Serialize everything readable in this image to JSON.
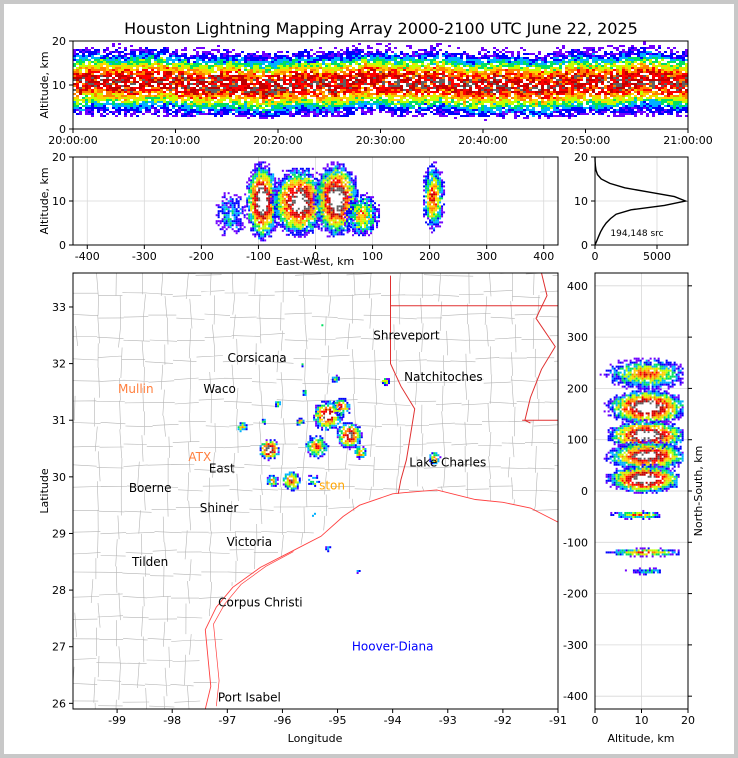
{
  "title": "Houston Lightning Mapping Array 2000-2100 UTC June 22, 2025",
  "colors": {
    "grid": "#d8d8d8",
    "county": "#b4b4b4",
    "coast": "#ff4040",
    "state": "#e03030",
    "density": [
      "#7000ff",
      "#0000ff",
      "#00b0ff",
      "#00e060",
      "#c0ff00",
      "#ffd000",
      "#ff8000",
      "#ff0000",
      "#c00000",
      "#606060",
      "#ffffff"
    ]
  },
  "chart_data": [
    {
      "id": "time_height",
      "type": "heatmap",
      "ylabel": "Altitude, km",
      "xlim": [
        "20:00:00",
        "21:00:00"
      ],
      "ylim": [
        0,
        20
      ],
      "x_ticks": [
        "20:00:00",
        "20:10:00",
        "20:20:00",
        "20:30:00",
        "20:40:00",
        "20:50:00",
        "21:00:00"
      ],
      "y_ticks": [
        0,
        10,
        20
      ],
      "core_altitude_km": [
        7,
        14
      ]
    },
    {
      "id": "ew_height",
      "type": "heatmap",
      "xlabel": "East-West, km",
      "ylabel": "Altitude, km",
      "xlim": [
        -425,
        425
      ],
      "ylim": [
        0,
        20
      ],
      "x_ticks": [
        -400,
        -300,
        -200,
        -100,
        0,
        100,
        200,
        300,
        400
      ],
      "y_ticks": [
        0,
        10,
        20
      ],
      "clusters": [
        {
          "x": -150,
          "w": 25,
          "alt": [
            2,
            12
          ],
          "peak": 0.25
        },
        {
          "x": -95,
          "w": 30,
          "alt": [
            1,
            19
          ],
          "peak": 0.95
        },
        {
          "x": -30,
          "w": 50,
          "alt": [
            2,
            18
          ],
          "peak": 0.9
        },
        {
          "x": 35,
          "w": 40,
          "alt": [
            2,
            19
          ],
          "peak": 0.95
        },
        {
          "x": 80,
          "w": 30,
          "alt": [
            2,
            12
          ],
          "peak": 0.5
        },
        {
          "x": 205,
          "w": 20,
          "alt": [
            3,
            19
          ],
          "peak": 0.6
        }
      ]
    },
    {
      "id": "altitude_histogram",
      "type": "line",
      "annotation": "194,148 src",
      "xlim": [
        0,
        7500
      ],
      "ylim": [
        0,
        20
      ],
      "x_ticks": [
        0,
        5000
      ],
      "y_ticks": [
        0,
        10,
        20
      ],
      "points": [
        [
          0,
          0
        ],
        [
          150,
          1
        ],
        [
          300,
          2
        ],
        [
          450,
          3
        ],
        [
          650,
          4
        ],
        [
          900,
          5
        ],
        [
          1250,
          6
        ],
        [
          1700,
          7
        ],
        [
          2900,
          8
        ],
        [
          5600,
          9
        ],
        [
          7300,
          10
        ],
        [
          6400,
          11
        ],
        [
          4400,
          12
        ],
        [
          2400,
          13
        ],
        [
          1200,
          14
        ],
        [
          500,
          15
        ],
        [
          200,
          16
        ],
        [
          80,
          17
        ],
        [
          30,
          18
        ],
        [
          10,
          19
        ],
        [
          0,
          20
        ]
      ]
    },
    {
      "id": "plan_view",
      "type": "scatter",
      "xlabel": "Longitude",
      "ylabel": "Latitude",
      "xlim": [
        -99.8,
        -91
      ],
      "ylim": [
        25.9,
        33.6
      ],
      "x_ticks": [
        -99,
        -98,
        -97,
        -96,
        -95,
        -94,
        -93,
        -92,
        -91
      ],
      "y_ticks": [
        26,
        27,
        28,
        29,
        30,
        31,
        32,
        33
      ],
      "places": [
        {
          "name": "Shreveport",
          "lon": -93.75,
          "lat": 32.5,
          "color": "#000000"
        },
        {
          "name": "Corsicana",
          "lon": -96.46,
          "lat": 32.1,
          "color": "#000000"
        },
        {
          "name": "Mullin",
          "lon": -98.66,
          "lat": 31.55,
          "color": "#ff8040"
        },
        {
          "name": "Waco",
          "lon": -97.14,
          "lat": 31.55,
          "color": "#000000"
        },
        {
          "name": "Natchitoches",
          "lon": -93.08,
          "lat": 31.76,
          "color": "#000000"
        },
        {
          "name": "ATX",
          "lon": -97.5,
          "lat": 30.35,
          "color": "#ff8040"
        },
        {
          "name": "East",
          "lon": -97.1,
          "lat": 30.15,
          "color": "#000000"
        },
        {
          "name": "Lake Charles",
          "lon": -93.0,
          "lat": 30.25,
          "color": "#000000"
        },
        {
          "name": "Boerne",
          "lon": -98.4,
          "lat": 29.8,
          "color": "#000000"
        },
        {
          "name": "ston",
          "lon": -95.1,
          "lat": 29.85,
          "color": "#ffa500"
        },
        {
          "name": "Shiner",
          "lon": -97.15,
          "lat": 29.45,
          "color": "#000000"
        },
        {
          "name": "Victoria",
          "lon": -96.6,
          "lat": 28.85,
          "color": "#000000"
        },
        {
          "name": "Tilden",
          "lon": -98.4,
          "lat": 28.5,
          "color": "#000000"
        },
        {
          "name": "Corpus Christi",
          "lon": -96.4,
          "lat": 27.78,
          "color": "#000000"
        },
        {
          "name": "Hoover-Diana",
          "lon": -94.0,
          "lat": 27.0,
          "color": "#0000ff"
        },
        {
          "name": "Port Isabel",
          "lon": -96.6,
          "lat": 26.1,
          "color": "#000000"
        }
      ],
      "clusters": [
        {
          "lon": -95.2,
          "lat": 31.1,
          "r": 0.28,
          "peak": 0.9
        },
        {
          "lon": -94.8,
          "lat": 30.75,
          "r": 0.25,
          "peak": 0.85
        },
        {
          "lon": -94.95,
          "lat": 31.25,
          "r": 0.18,
          "peak": 0.7
        },
        {
          "lon": -95.4,
          "lat": 30.55,
          "r": 0.22,
          "peak": 0.6
        },
        {
          "lon": -96.25,
          "lat": 30.5,
          "r": 0.2,
          "peak": 0.95
        },
        {
          "lon": -96.75,
          "lat": 30.9,
          "r": 0.1,
          "peak": 0.5
        },
        {
          "lon": -95.85,
          "lat": 29.95,
          "r": 0.18,
          "peak": 0.7
        },
        {
          "lon": -96.2,
          "lat": 29.95,
          "r": 0.12,
          "peak": 0.55
        },
        {
          "lon": -95.45,
          "lat": 29.95,
          "r": 0.12,
          "peak": 0.5
        },
        {
          "lon": -94.6,
          "lat": 30.45,
          "r": 0.13,
          "peak": 0.6
        },
        {
          "lon": -93.25,
          "lat": 30.35,
          "r": 0.12,
          "peak": 0.6
        },
        {
          "lon": -94.15,
          "lat": 31.7,
          "r": 0.08,
          "peak": 0.5
        },
        {
          "lon": -95.7,
          "lat": 31.0,
          "r": 0.08,
          "peak": 0.5
        },
        {
          "lon": -96.1,
          "lat": 31.3,
          "r": 0.07,
          "peak": 0.45
        },
        {
          "lon": -95.6,
          "lat": 31.5,
          "r": 0.07,
          "peak": 0.35
        },
        {
          "lon": -95.05,
          "lat": 31.75,
          "r": 0.09,
          "peak": 0.4
        },
        {
          "lon": -95.45,
          "lat": 29.35,
          "r": 0.05,
          "peak": 0.45
        },
        {
          "lon": -95.2,
          "lat": 28.75,
          "r": 0.06,
          "peak": 0.3
        },
        {
          "lon": -94.65,
          "lat": 28.35,
          "r": 0.04,
          "peak": 0.3
        },
        {
          "lon": -95.65,
          "lat": 32.0,
          "r": 0.04,
          "peak": 0.3
        },
        {
          "lon": -95.3,
          "lat": 32.7,
          "r": 0.03,
          "peak": 0.25
        },
        {
          "lon": -96.35,
          "lat": 31.0,
          "r": 0.06,
          "peak": 0.4
        }
      ],
      "state_lines": [
        [
          [
            -94.04,
            33.55
          ],
          [
            -94.04,
            33.02
          ],
          [
            -91.16,
            33.02
          ],
          [
            -91.0,
            33.02
          ]
        ],
        [
          [
            -94.04,
            33.55
          ],
          [
            -94.04,
            32.0
          ],
          [
            -93.85,
            31.6
          ],
          [
            -93.6,
            31.2
          ],
          [
            -93.7,
            30.6
          ],
          [
            -93.75,
            30.3
          ],
          [
            -93.85,
            29.95
          ],
          [
            -93.9,
            29.7
          ]
        ],
        [
          [
            -91.65,
            31.0
          ],
          [
            -91.0,
            31.0
          ]
        ],
        [
          [
            -91.3,
            33.6
          ],
          [
            -91.2,
            33.2
          ],
          [
            -91.4,
            32.8
          ],
          [
            -91.05,
            32.3
          ],
          [
            -91.3,
            31.9
          ],
          [
            -91.5,
            31.4
          ],
          [
            -91.6,
            31.0
          ],
          [
            -91.5,
            30.95
          ]
        ]
      ],
      "coast": [
        [
          -97.4,
          25.9
        ],
        [
          -97.3,
          26.3
        ],
        [
          -97.35,
          26.8
        ],
        [
          -97.4,
          27.3
        ],
        [
          -97.2,
          27.7
        ],
        [
          -96.9,
          28.05
        ],
        [
          -96.4,
          28.4
        ],
        [
          -95.9,
          28.65
        ],
        [
          -95.3,
          28.95
        ],
        [
          -94.9,
          29.3
        ],
        [
          -94.6,
          29.5
        ],
        [
          -94.0,
          29.7
        ],
        [
          -93.8,
          29.72
        ],
        [
          -93.2,
          29.77
        ],
        [
          -92.5,
          29.6
        ],
        [
          -92.0,
          29.55
        ],
        [
          -91.5,
          29.45
        ],
        [
          -91.0,
          29.2
        ]
      ],
      "barrier_island": [
        [
          -97.2,
          25.95
        ],
        [
          -97.15,
          26.4
        ],
        [
          -97.2,
          26.9
        ],
        [
          -97.25,
          27.4
        ],
        [
          -97.05,
          27.75
        ],
        [
          -96.75,
          28.1
        ],
        [
          -96.3,
          28.42
        ],
        [
          -95.8,
          28.68
        ]
      ]
    },
    {
      "id": "ns_height",
      "type": "heatmap",
      "xlabel": "Altitude, km",
      "ylabel": "North-South, km",
      "xlim": [
        0,
        20
      ],
      "ylim": [
        -425,
        425
      ],
      "x_ticks": [
        0,
        10,
        20
      ],
      "y_ticks": [
        -400,
        -300,
        -200,
        -100,
        0,
        100,
        200,
        300,
        400
      ],
      "clusters": [
        {
          "y": 230,
          "h": 30,
          "alt": [
            1,
            19
          ],
          "peak": 0.55
        },
        {
          "y": 165,
          "h": 35,
          "alt": [
            1,
            19
          ],
          "peak": 0.95
        },
        {
          "y": 110,
          "h": 30,
          "alt": [
            1,
            19
          ],
          "peak": 0.95
        },
        {
          "y": 70,
          "h": 30,
          "alt": [
            1,
            19
          ],
          "peak": 0.85
        },
        {
          "y": 25,
          "h": 28,
          "alt": [
            1,
            18
          ],
          "peak": 0.95
        },
        {
          "y": -45,
          "h": 8,
          "alt": [
            2,
            14
          ],
          "peak": 0.5
        },
        {
          "y": -118,
          "h": 8,
          "alt": [
            1,
            18
          ],
          "peak": 0.6
        },
        {
          "y": -155,
          "h": 6,
          "alt": [
            6,
            14
          ],
          "peak": 0.3
        }
      ]
    }
  ]
}
